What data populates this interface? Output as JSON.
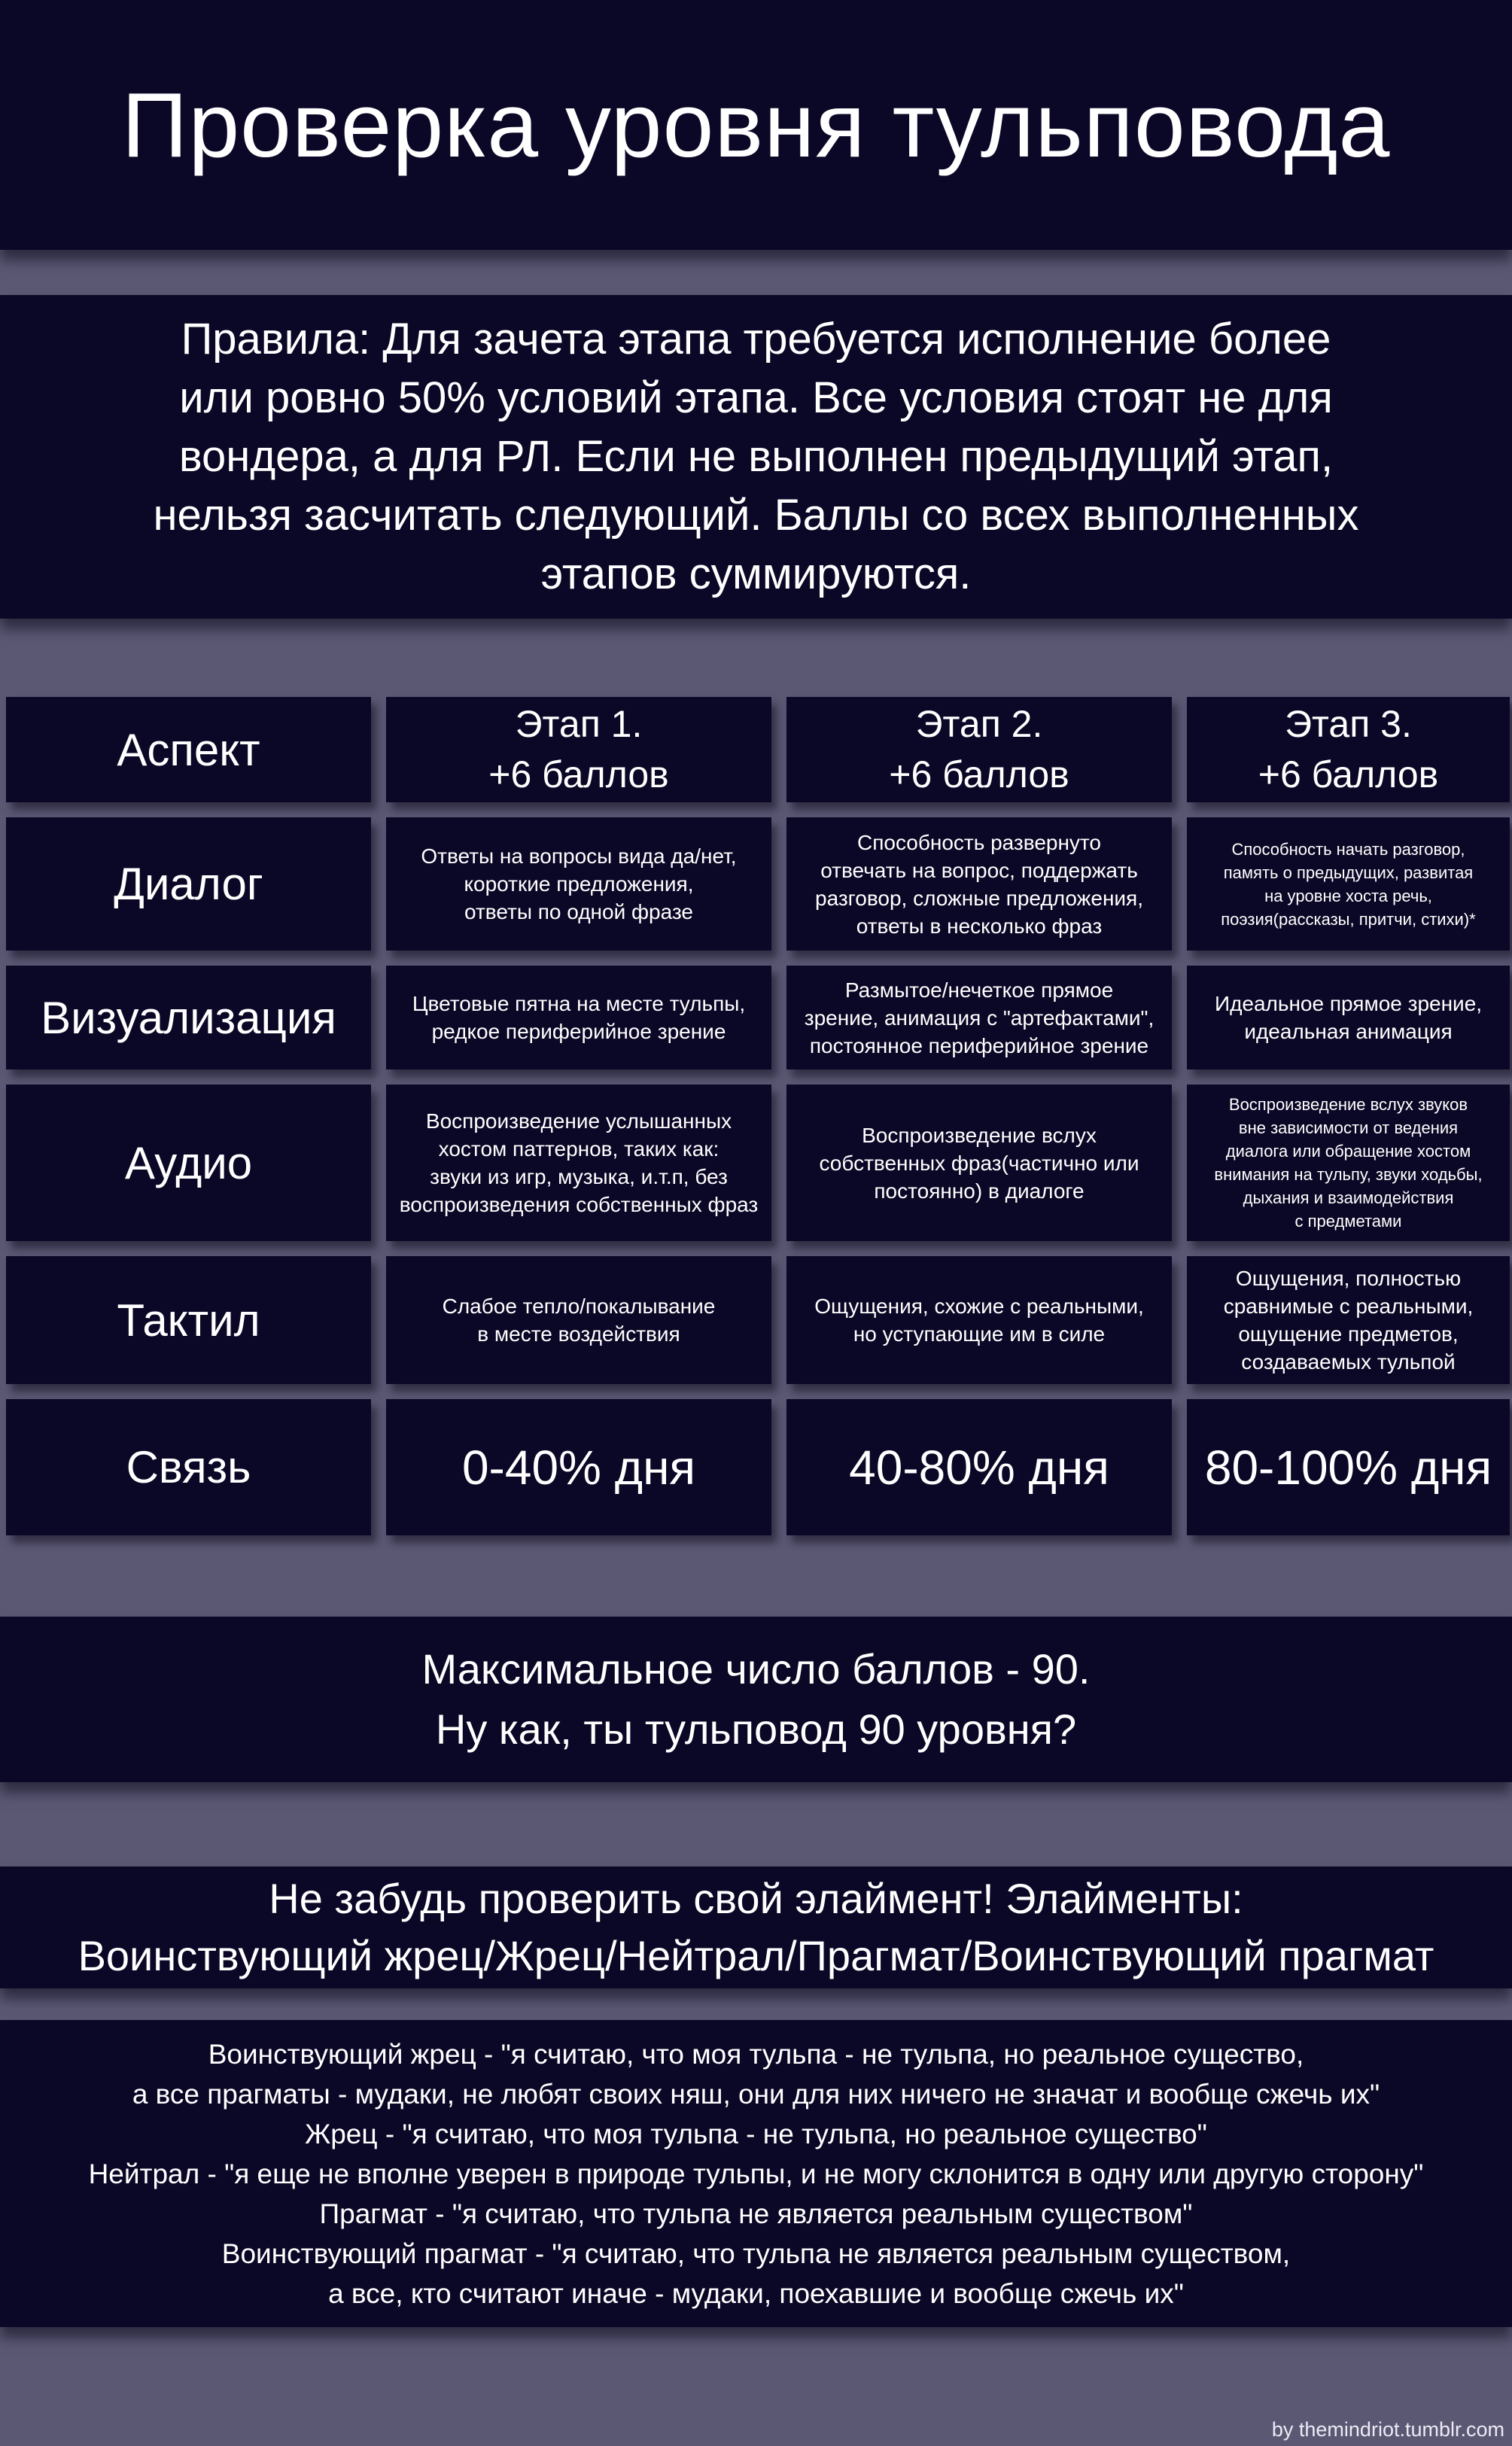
{
  "colors": {
    "background": "#5b5874",
    "panel": "#0b0726",
    "text": "#ffffff"
  },
  "header": {
    "title": "Проверка уровня тульповода"
  },
  "rules": {
    "text": "Правила: Для зачета этапа требуется исполнение более\nили ровно 50% условий этапа. Все условия стоят не для\nвондера, а для РЛ. Если не выполнен предыдущий этап,\nнельзя засчитать следующий. Баллы со всех выполненных\nэтапов суммируются."
  },
  "table": {
    "corner_label": "Аспект",
    "stage_headers": [
      "Этап 1.\n+6 баллов",
      "Этап 2.\n+6 баллов",
      "Этап 3.\n+6 баллов"
    ],
    "rows": [
      {
        "label": "Диалог",
        "cells": [
          "Ответы на вопросы вида да/нет,\nкороткие предложения,\nответы по одной фразе",
          "Способность развернуто\nотвечать на вопрос, поддержать\nразговор, сложные предложения,\nответы в несколько фраз",
          "Способность начать разговор,\nпамять о предыдущих, развитая\nна уровне хоста речь,\nпоэзия(рассказы, притчи, стихи)*"
        ]
      },
      {
        "label": "Визуализация",
        "cells": [
          "Цветовые пятна на месте тульпы,\nредкое периферийное зрение",
          "Размытое/нечеткое прямое\nзрение, анимация с \"артефактами\",\nпостоянное периферийное зрение",
          "Идеальное прямое зрение,\nидеальная анимация"
        ]
      },
      {
        "label": "Аудио",
        "cells": [
          "Воспроизведение услышанных\nхостом паттернов, таких как:\nзвуки из игр, музыка, и.т.п, без\nвоспроизведения собственных фраз",
          "Воспроизведение вслух\nсобственных фраз(частично или\nпостоянно) в диалоге",
          "Воспроизведение вслух звуков\nвне зависимости от ведения\nдиалога или обращение хостом\nвнимания на тульпу, звуки ходьбы,\nдыхания и взаимодействия\nс предметами"
        ]
      },
      {
        "label": "Тактил",
        "cells": [
          "Слабое тепло/покалывание\nв месте воздействия",
          "Ощущения, схожие с реальными,\nно уступающие им в силе",
          "Ощущения, полностью\nсравнимые с реальными,\nощущение предметов,\nсоздаваемых тульпой"
        ]
      },
      {
        "label": "Связь",
        "cells": [
          "0-40% дня",
          "40-80% дня",
          "80-100% дня"
        ]
      }
    ]
  },
  "summary": {
    "text": "Максимальное число баллов - 90.\nНу как, ты тульповод 90 уровня?"
  },
  "alignment": {
    "heading": "Не забудь проверить свой элаймент! Элайменты:\nВоинствующий жрец/Жрец/Нейтрал/Прагмат/Воинствующий прагмат",
    "descriptions": "Воинствующий жрец - \"я считаю, что моя тульпа - не тульпа, но реальное существо,\nа все прагматы - мудаки, не любят своих няш, они для них ничего не значат и вообще сжечь их\"\nЖрец - \"я считаю, что моя тульпа - не тульпа, но реальное существо\"\nНейтрал - \"я еще не вполне уверен в природе тульпы, и не могу склонится в одну или другую сторону\"\nПрагмат - \"я считаю, что тульпа не является реальным существом\"\nВоинствующий прагмат - \"я считаю, что тульпа не является реальным существом,\nа все, кто считают иначе - мудаки, поехавшие и вообще сжечь их\""
  },
  "footer": {
    "credit": "by themindriot.tumblr.com"
  }
}
